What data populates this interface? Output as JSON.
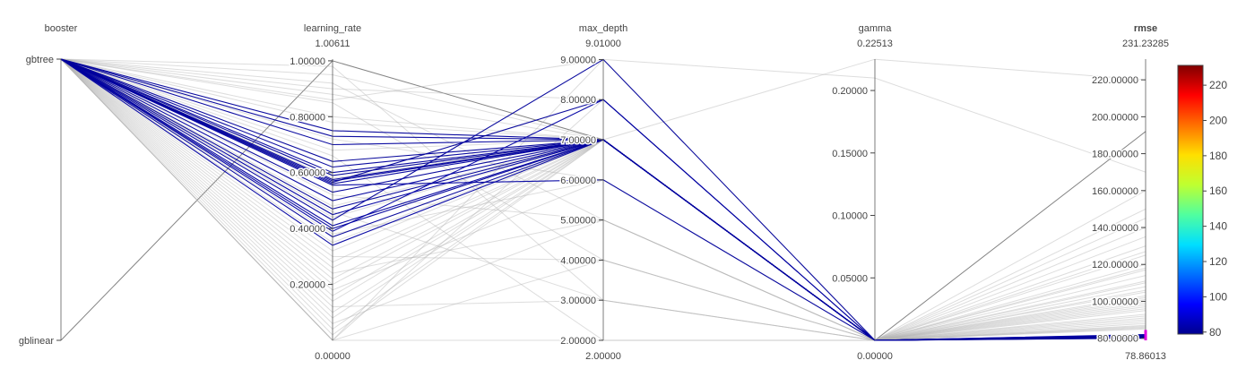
{
  "chart_data": {
    "type": "parallel_coordinates",
    "colorscale": {
      "name": "Jet",
      "range": [
        78.86013,
        231.23285
      ],
      "ticks": [
        "80",
        "100",
        "120",
        "140",
        "160",
        "180",
        "200",
        "220"
      ],
      "tick_values": [
        80,
        100,
        120,
        140,
        160,
        180,
        200,
        220
      ],
      "stops": [
        "#00008f",
        "#0000ff",
        "#0070ff",
        "#00dfff",
        "#50ff9f",
        "#bfff30",
        "#ffdf00",
        "#ff7000",
        "#ff0000",
        "#800000"
      ]
    },
    "dimensions": [
      {
        "name": "booster",
        "kind": "categorical",
        "categories": [
          "gbtree",
          "gblinear"
        ],
        "highlight": false
      },
      {
        "name": "learning_rate",
        "kind": "numeric",
        "range": [
          0,
          1.00611
        ],
        "range_labels": [
          "1.00611",
          "0.00000"
        ],
        "ticks": [
          "0.20000",
          "0.40000",
          "0.60000",
          "0.80000",
          "1.00000"
        ],
        "tick_values": [
          0.2,
          0.4,
          0.6,
          0.8,
          1.0
        ],
        "highlight": false
      },
      {
        "name": "max_depth",
        "kind": "numeric",
        "range": [
          2,
          9.01
        ],
        "range_labels": [
          "9.01000",
          "2.00000"
        ],
        "ticks": [
          "2.00000",
          "3.00000",
          "4.00000",
          "5.00000",
          "6.00000",
          "7.00000",
          "8.00000",
          "9.00000"
        ],
        "tick_values": [
          2,
          3,
          4,
          5,
          6,
          7,
          8,
          9
        ],
        "highlight": false
      },
      {
        "name": "gamma",
        "kind": "numeric",
        "range": [
          0,
          0.22513
        ],
        "range_labels": [
          "0.22513",
          "0.00000"
        ],
        "ticks": [
          "0.05000",
          "0.10000",
          "0.15000",
          "0.20000"
        ],
        "tick_values": [
          0.05,
          0.1,
          0.15,
          0.2
        ],
        "highlight": false
      },
      {
        "name": "rmse",
        "kind": "numeric",
        "range": [
          78.86013,
          231.23285
        ],
        "range_labels": [
          "231.23285",
          "78.86013"
        ],
        "ticks": [
          "80.00000",
          "100.00000",
          "120.00000",
          "140.00000",
          "160.00000",
          "180.00000",
          "200.00000",
          "220.00000"
        ],
        "tick_values": [
          80,
          100,
          120,
          140,
          160,
          180,
          200,
          220
        ],
        "highlight": true,
        "constraint_range": [
          78.86013,
          84.5
        ]
      }
    ],
    "selected_lines": [
      {
        "booster": "gbtree",
        "learning_rate": 0.75,
        "max_depth": 7,
        "gamma": 0,
        "rmse": 80.5
      },
      {
        "booster": "gbtree",
        "learning_rate": 0.73,
        "max_depth": 7,
        "gamma": 0,
        "rmse": 80.7
      },
      {
        "booster": "gbtree",
        "learning_rate": 0.7,
        "max_depth": 7,
        "gamma": 0,
        "rmse": 81.0
      },
      {
        "booster": "gbtree",
        "learning_rate": 0.64,
        "max_depth": 7,
        "gamma": 0,
        "rmse": 80.3
      },
      {
        "booster": "gbtree",
        "learning_rate": 0.62,
        "max_depth": 7,
        "gamma": 0,
        "rmse": 80.9
      },
      {
        "booster": "gbtree",
        "learning_rate": 0.6,
        "max_depth": 7,
        "gamma": 0,
        "rmse": 81.2
      },
      {
        "booster": "gbtree",
        "learning_rate": 0.59,
        "max_depth": 7,
        "gamma": 0,
        "rmse": 80.1
      },
      {
        "booster": "gbtree",
        "learning_rate": 0.575,
        "max_depth": 7,
        "gamma": 0,
        "rmse": 80.6
      },
      {
        "booster": "gbtree",
        "learning_rate": 0.57,
        "max_depth": 7,
        "gamma": 0,
        "rmse": 81.4
      },
      {
        "booster": "gbtree",
        "learning_rate": 0.565,
        "max_depth": 8,
        "gamma": 0,
        "rmse": 80.2
      },
      {
        "booster": "gbtree",
        "learning_rate": 0.56,
        "max_depth": 7,
        "gamma": 0,
        "rmse": 80.8
      },
      {
        "booster": "gbtree",
        "learning_rate": 0.555,
        "max_depth": 6,
        "gamma": 0,
        "rmse": 81.6
      },
      {
        "booster": "gbtree",
        "learning_rate": 0.53,
        "max_depth": 7,
        "gamma": 0,
        "rmse": 80.4
      },
      {
        "booster": "gbtree",
        "learning_rate": 0.5,
        "max_depth": 7,
        "gamma": 0,
        "rmse": 81.1
      },
      {
        "booster": "gbtree",
        "learning_rate": 0.47,
        "max_depth": 7,
        "gamma": 0,
        "rmse": 80.0
      },
      {
        "booster": "gbtree",
        "learning_rate": 0.45,
        "max_depth": 7,
        "gamma": 0,
        "rmse": 81.8
      },
      {
        "booster": "gbtree",
        "learning_rate": 0.43,
        "max_depth": 9,
        "gamma": 0,
        "rmse": 80.6
      },
      {
        "booster": "gbtree",
        "learning_rate": 0.41,
        "max_depth": 7,
        "gamma": 0,
        "rmse": 81.3
      },
      {
        "booster": "gbtree",
        "learning_rate": 0.4,
        "max_depth": 7,
        "gamma": 0,
        "rmse": 80.9
      },
      {
        "booster": "gbtree",
        "learning_rate": 0.39,
        "max_depth": 8,
        "gamma": 0,
        "rmse": 82.0
      },
      {
        "booster": "gbtree",
        "learning_rate": 0.37,
        "max_depth": 7,
        "gamma": 0,
        "rmse": 80.3
      },
      {
        "booster": "gbtree",
        "learning_rate": 0.34,
        "max_depth": 7,
        "gamma": 0,
        "rmse": 81.5
      }
    ],
    "context_lines": [
      {
        "booster": "gblinear",
        "learning_rate": 1.0,
        "max_depth": 7,
        "gamma": 0,
        "rmse": 192
      },
      {
        "booster": "gbtree",
        "learning_rate": 0.02,
        "max_depth": 7,
        "gamma": 0.225,
        "rmse": 220
      },
      {
        "booster": "gbtree",
        "learning_rate": 0.0,
        "max_depth": 9,
        "gamma": 0.21,
        "rmse": 170
      },
      {
        "booster": "gbtree",
        "learning_rate": 0.98,
        "max_depth": 3,
        "gamma": 0,
        "rmse": 160
      },
      {
        "booster": "gbtree",
        "learning_rate": 0.95,
        "max_depth": 7,
        "gamma": 0,
        "rmse": 150
      },
      {
        "booster": "gbtree",
        "learning_rate": 0.92,
        "max_depth": 5,
        "gamma": 0,
        "rmse": 140
      },
      {
        "booster": "gbtree",
        "learning_rate": 0.88,
        "max_depth": 7,
        "gamma": 0,
        "rmse": 135
      },
      {
        "booster": "gbtree",
        "learning_rate": 0.85,
        "max_depth": 4,
        "gamma": 0,
        "rmse": 130
      },
      {
        "booster": "gbtree",
        "learning_rate": 0.8,
        "max_depth": 7,
        "gamma": 0,
        "rmse": 125
      },
      {
        "booster": "gbtree",
        "learning_rate": 0.78,
        "max_depth": 7,
        "gamma": 0,
        "rmse": 120
      },
      {
        "booster": "gbtree",
        "learning_rate": 0.72,
        "max_depth": 6,
        "gamma": 0,
        "rmse": 117
      },
      {
        "booster": "gbtree",
        "learning_rate": 0.68,
        "max_depth": 7,
        "gamma": 0,
        "rmse": 114
      },
      {
        "booster": "gbtree",
        "learning_rate": 0.58,
        "max_depth": 7,
        "gamma": 0,
        "rmse": 111
      },
      {
        "booster": "gbtree",
        "learning_rate": 0.52,
        "max_depth": 5,
        "gamma": 0,
        "rmse": 108
      },
      {
        "booster": "gbtree",
        "learning_rate": 0.48,
        "max_depth": 7,
        "gamma": 0,
        "rmse": 105
      },
      {
        "booster": "gbtree",
        "learning_rate": 0.44,
        "max_depth": 7,
        "gamma": 0,
        "rmse": 102
      },
      {
        "booster": "gbtree",
        "learning_rate": 0.38,
        "max_depth": 6,
        "gamma": 0,
        "rmse": 100
      },
      {
        "booster": "gbtree",
        "learning_rate": 0.35,
        "max_depth": 7,
        "gamma": 0,
        "rmse": 98
      },
      {
        "booster": "gbtree",
        "learning_rate": 0.32,
        "max_depth": 7,
        "gamma": 0,
        "rmse": 96
      },
      {
        "booster": "gbtree",
        "learning_rate": 0.3,
        "max_depth": 4,
        "gamma": 0,
        "rmse": 95
      },
      {
        "booster": "gbtree",
        "learning_rate": 0.28,
        "max_depth": 7,
        "gamma": 0,
        "rmse": 93
      },
      {
        "booster": "gbtree",
        "learning_rate": 0.26,
        "max_depth": 7,
        "gamma": 0,
        "rmse": 92
      },
      {
        "booster": "gbtree",
        "learning_rate": 0.24,
        "max_depth": 5,
        "gamma": 0,
        "rmse": 91
      },
      {
        "booster": "gbtree",
        "learning_rate": 0.22,
        "max_depth": 7,
        "gamma": 0,
        "rmse": 90
      },
      {
        "booster": "gbtree",
        "learning_rate": 0.2,
        "max_depth": 7,
        "gamma": 0,
        "rmse": 89
      },
      {
        "booster": "gbtree",
        "learning_rate": 0.18,
        "max_depth": 6,
        "gamma": 0,
        "rmse": 88
      },
      {
        "booster": "gbtree",
        "learning_rate": 0.16,
        "max_depth": 7,
        "gamma": 0,
        "rmse": 87
      },
      {
        "booster": "gbtree",
        "learning_rate": 0.14,
        "max_depth": 7,
        "gamma": 0,
        "rmse": 86.5
      },
      {
        "booster": "gbtree",
        "learning_rate": 0.12,
        "max_depth": 3,
        "gamma": 0,
        "rmse": 86
      },
      {
        "booster": "gbtree",
        "learning_rate": 0.1,
        "max_depth": 7,
        "gamma": 0,
        "rmse": 85.5
      },
      {
        "booster": "gbtree",
        "learning_rate": 0.08,
        "max_depth": 7,
        "gamma": 0,
        "rmse": 85
      },
      {
        "booster": "gbtree",
        "learning_rate": 0.06,
        "max_depth": 5,
        "gamma": 0,
        "rmse": 99
      },
      {
        "booster": "gbtree",
        "learning_rate": 0.04,
        "max_depth": 7,
        "gamma": 0,
        "rmse": 103
      },
      {
        "booster": "gbtree",
        "learning_rate": 0.0,
        "max_depth": 8,
        "gamma": 0,
        "rmse": 110
      },
      {
        "booster": "gbtree",
        "learning_rate": 0.0,
        "max_depth": 4,
        "gamma": 0,
        "rmse": 145
      },
      {
        "booster": "gbtree",
        "learning_rate": 0.0,
        "max_depth": 2,
        "gamma": 0,
        "rmse": 127
      },
      {
        "booster": "gbtree",
        "learning_rate": 0.66,
        "max_depth": 2,
        "gamma": 0,
        "rmse": 118
      },
      {
        "booster": "gbtree",
        "learning_rate": 0.46,
        "max_depth": 3,
        "gamma": 0,
        "rmse": 106
      },
      {
        "booster": "gbtree",
        "learning_rate": 0.86,
        "max_depth": 9,
        "gamma": 0,
        "rmse": 101
      },
      {
        "booster": "gbtree",
        "learning_rate": 0.9,
        "max_depth": 8,
        "gamma": 0,
        "rmse": 97
      }
    ]
  }
}
